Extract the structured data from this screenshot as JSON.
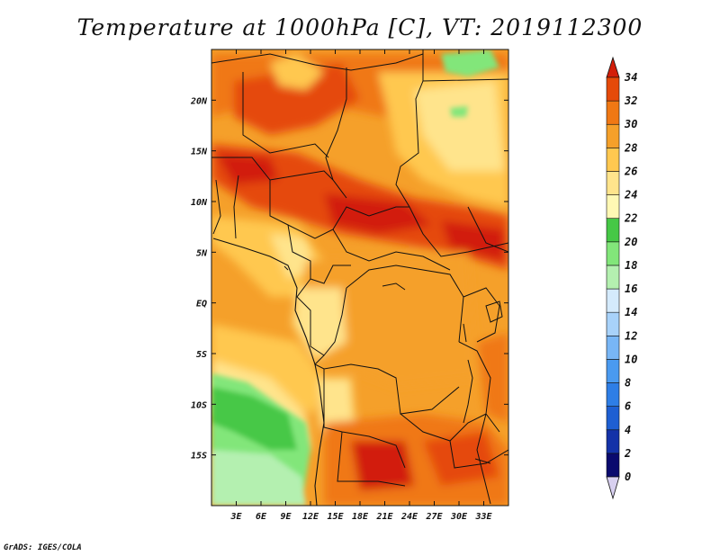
{
  "title": "Temperature at 1000hPa [C], VT: 2019112300",
  "credit": "GrADS: IGES/COLA",
  "map": {
    "lon_range": [
      0,
      36
    ],
    "lat_range": [
      -20,
      25
    ],
    "lon_ticks": [
      "3E",
      "6E",
      "9E",
      "12E",
      "15E",
      "18E",
      "21E",
      "24E",
      "27E",
      "30E",
      "33E"
    ],
    "lon_tick_values": [
      3,
      6,
      9,
      12,
      15,
      18,
      21,
      24,
      27,
      30,
      33
    ],
    "lat_ticks": [
      "20N",
      "15N",
      "10N",
      "5N",
      "EQ",
      "5S",
      "10S",
      "15S"
    ],
    "lat_tick_values": [
      20,
      15,
      10,
      5,
      0,
      -5,
      -10,
      -15
    ]
  },
  "colorbar": {
    "levels": [
      "0",
      "2",
      "4",
      "6",
      "8",
      "10",
      "12",
      "14",
      "16",
      "18",
      "20",
      "22",
      "24",
      "26",
      "28",
      "30",
      "32",
      "34"
    ],
    "colors": [
      "#0a0a6e",
      "#1432a8",
      "#1e5fd2",
      "#2e7ee6",
      "#4a9af0",
      "#78b6f6",
      "#a8d2fa",
      "#d4eafc",
      "#b4f0b0",
      "#82e67a",
      "#46c846",
      "#fff8b4",
      "#ffe48c",
      "#ffc850",
      "#f5a02a",
      "#f07814",
      "#e54a0a",
      "#d21e0a"
    ],
    "under_color": "#d8d0f0",
    "over_color": "#d21e0a"
  }
}
